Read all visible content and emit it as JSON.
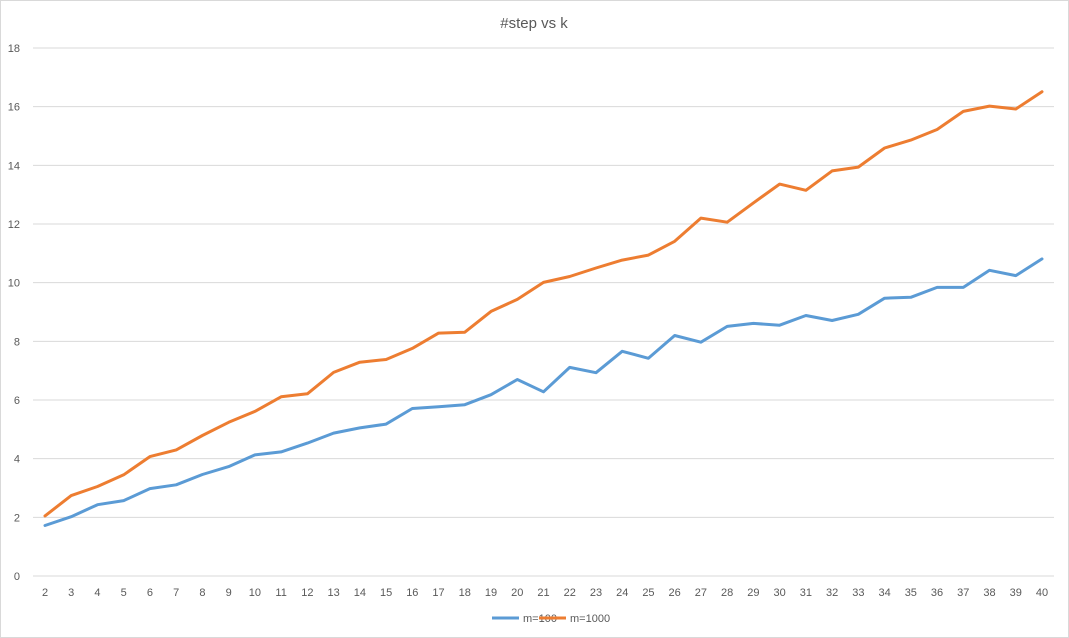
{
  "chart_data": {
    "type": "line",
    "title": "#step vs k",
    "xlabel": "",
    "ylabel": "",
    "categories": [
      "2",
      "3",
      "4",
      "5",
      "6",
      "7",
      "8",
      "9",
      "10",
      "11",
      "12",
      "13",
      "14",
      "15",
      "16",
      "17",
      "18",
      "19",
      "20",
      "21",
      "22",
      "23",
      "24",
      "25",
      "26",
      "27",
      "28",
      "29",
      "30",
      "31",
      "32",
      "33",
      "34",
      "35",
      "36",
      "37",
      "38",
      "39",
      "40"
    ],
    "ylim": [
      0,
      18
    ],
    "yticks": [
      0,
      2,
      4,
      6,
      8,
      10,
      12,
      14,
      16,
      18
    ],
    "grid": true,
    "legend_position": "bottom",
    "series": [
      {
        "name": "m=100",
        "color": "#5b9bd5",
        "values": [
          1.72,
          2.02,
          2.43,
          2.57,
          2.98,
          3.11,
          3.46,
          3.73,
          4.13,
          4.23,
          4.53,
          4.87,
          5.05,
          5.18,
          5.71,
          5.77,
          5.84,
          6.18,
          6.7,
          6.28,
          7.11,
          6.93,
          7.66,
          7.42,
          8.2,
          7.97,
          8.51,
          8.61,
          8.55,
          8.88,
          8.71,
          8.92,
          9.47,
          9.5,
          9.84,
          9.84,
          10.42,
          10.24,
          10.81
        ]
      },
      {
        "name": "m=1000",
        "color": "#ed7d31",
        "values": [
          2.05,
          2.74,
          3.05,
          3.45,
          4.07,
          4.3,
          4.79,
          5.24,
          5.61,
          6.11,
          6.21,
          6.94,
          7.29,
          7.38,
          7.76,
          8.28,
          8.31,
          9.02,
          9.43,
          10.01,
          10.21,
          10.5,
          10.77,
          10.94,
          11.41,
          12.2,
          12.06,
          12.72,
          13.36,
          13.15,
          13.81,
          13.94,
          14.59,
          14.86,
          15.22,
          15.84,
          16.02,
          15.92,
          16.51
        ]
      }
    ]
  }
}
